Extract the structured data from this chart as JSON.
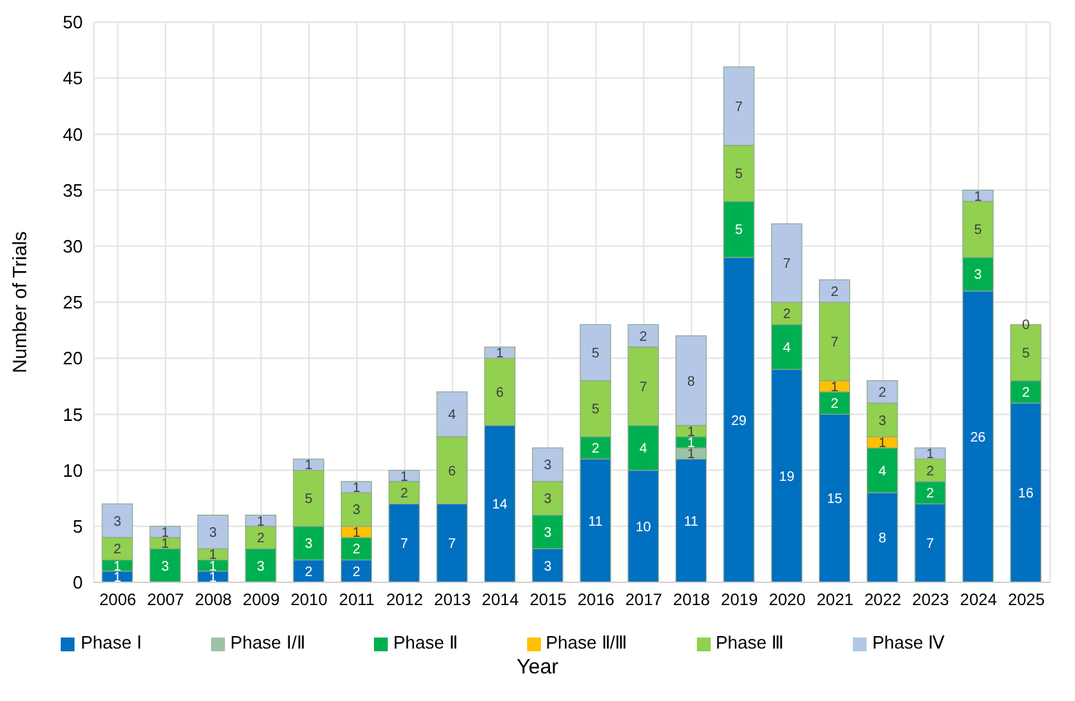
{
  "chart_data": {
    "type": "bar",
    "stacked": true,
    "xlabel": "Year",
    "ylabel": "Number of Trials",
    "categories": [
      "2006",
      "2007",
      "2008",
      "2009",
      "2010",
      "2011",
      "2012",
      "2013",
      "2014",
      "2015",
      "2016",
      "2017",
      "2018",
      "2019",
      "2020",
      "2021",
      "2022",
      "2023",
      "2024",
      "2025"
    ],
    "series": [
      {
        "name": "Phase Ⅰ",
        "color": "#0070c0",
        "values": [
          1,
          0,
          1,
          0,
          2,
          2,
          7,
          7,
          14,
          3,
          11,
          10,
          11,
          29,
          19,
          15,
          8,
          7,
          26,
          16
        ],
        "value_labels": [
          "1",
          null,
          "1",
          null,
          "2",
          "2",
          "7",
          "7",
          "14",
          "3",
          "11",
          "10",
          "11",
          "29",
          "19",
          "15",
          "8",
          "7",
          "26",
          "16"
        ]
      },
      {
        "name": "Phase Ⅰ/Ⅱ",
        "color": "#9dc3a6",
        "values": [
          0,
          0,
          0,
          0,
          0,
          0,
          0,
          0,
          0,
          0,
          0,
          0,
          1,
          0,
          0,
          0,
          0,
          0,
          0,
          0
        ],
        "value_labels": [
          null,
          null,
          null,
          null,
          null,
          null,
          null,
          null,
          null,
          null,
          null,
          null,
          "1",
          null,
          null,
          null,
          null,
          null,
          null,
          null
        ]
      },
      {
        "name": "Phase Ⅱ",
        "color": "#00b050",
        "values": [
          1,
          3,
          1,
          3,
          3,
          2,
          0,
          0,
          0,
          3,
          2,
          4,
          1,
          5,
          4,
          2,
          4,
          2,
          3,
          2
        ],
        "value_labels": [
          "1",
          "3",
          "1",
          "3",
          "3",
          "2",
          null,
          null,
          null,
          "3",
          "2",
          "4",
          "1",
          "5",
          "4",
          "2",
          "4",
          "2",
          "3",
          "2"
        ]
      },
      {
        "name": "Phase Ⅱ/Ⅲ",
        "color": "#ffc000",
        "values": [
          0,
          0,
          0,
          0,
          0,
          1,
          0,
          0,
          0,
          0,
          0,
          0,
          0,
          0,
          0,
          1,
          1,
          0,
          0,
          0
        ],
        "value_labels": [
          null,
          null,
          null,
          null,
          null,
          "1",
          null,
          null,
          null,
          null,
          null,
          null,
          null,
          null,
          null,
          "1",
          "1",
          null,
          null,
          null
        ]
      },
      {
        "name": "Phase Ⅲ",
        "color": "#92d050",
        "values": [
          2,
          1,
          1,
          2,
          5,
          3,
          2,
          6,
          6,
          3,
          5,
          7,
          1,
          5,
          2,
          7,
          3,
          2,
          5,
          5
        ],
        "value_labels": [
          "2",
          "1",
          "1",
          "2",
          "5",
          "3",
          "2",
          "6",
          "6",
          "3",
          "5",
          "7",
          "1",
          "5",
          "2",
          "7",
          "3",
          "2",
          "5",
          "5"
        ]
      },
      {
        "name": "Phase Ⅳ",
        "color": "#b4c7e7",
        "values": [
          3,
          1,
          3,
          1,
          1,
          1,
          1,
          4,
          1,
          3,
          5,
          2,
          8,
          7,
          7,
          2,
          2,
          1,
          1,
          0
        ],
        "value_labels": [
          "3",
          "1",
          "3",
          "1",
          "1",
          "1",
          "1",
          "4",
          "1",
          "3",
          "5",
          "2",
          "8",
          "7",
          "7",
          "2",
          "2",
          "1",
          "1",
          "0"
        ]
      }
    ],
    "ylim": [
      0,
      50
    ],
    "yticks": [
      0,
      5,
      10,
      15,
      20,
      25,
      30,
      35,
      40,
      45,
      50
    ],
    "grid": true,
    "legend": "bottom"
  }
}
